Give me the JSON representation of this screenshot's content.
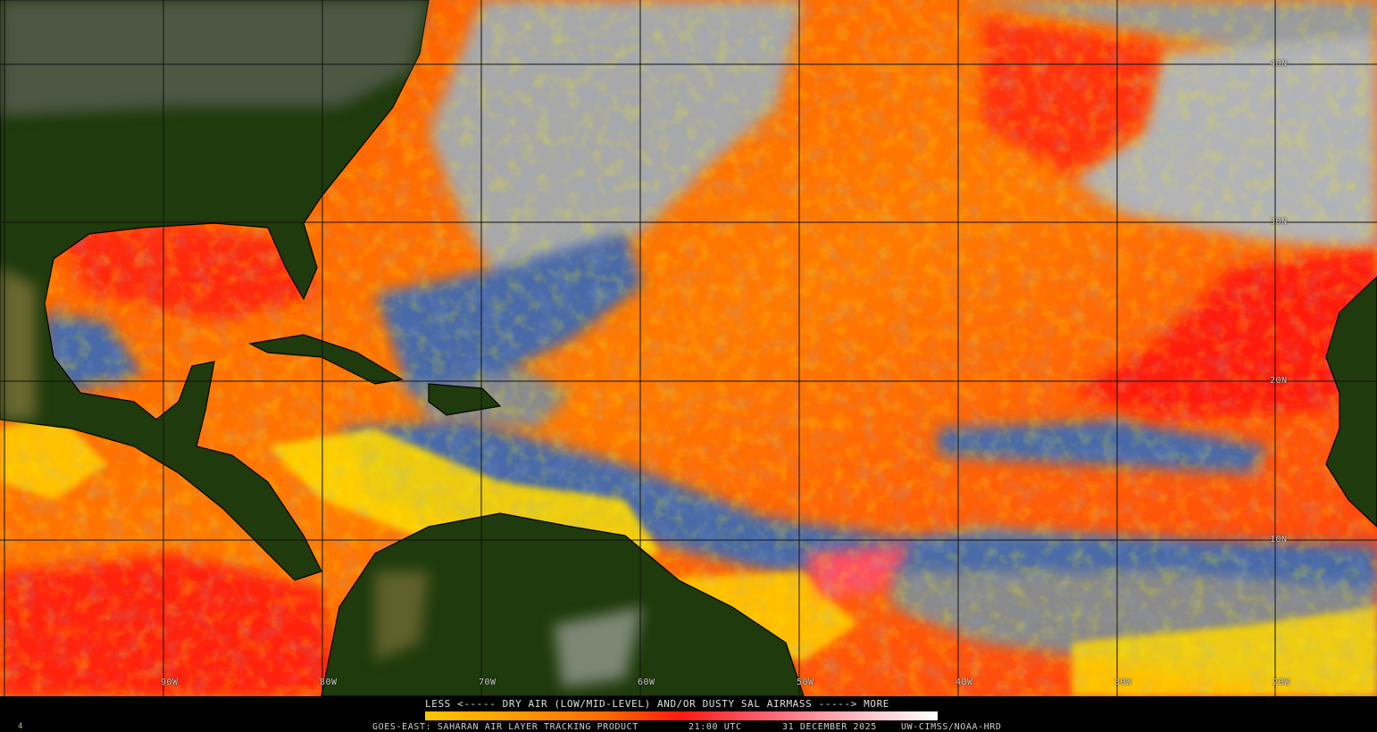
{
  "map": {
    "lat_labels": [
      "40N",
      "30N",
      "20N",
      "10N"
    ],
    "lon_labels": [
      "90W",
      "80W",
      "70W",
      "60W",
      "50W",
      "40W",
      "30W",
      "20W"
    ],
    "colors": {
      "land": "#1f3a0c",
      "ocean_dry": "#ff6a00",
      "ocean_moist": "#4a6aa8",
      "cloud": "#a8a8a8",
      "very_dry": "#ff1a10",
      "low": "#ffe600"
    }
  },
  "legend": {
    "title": "LESS <----- DRY AIR (LOW/MID-LEVEL) AND/OR DUSTY SAL AIRMASS -----> MORE",
    "scale_colors": [
      "#ffc400",
      "#ff6a00",
      "#ff1a10",
      "#ffb0b8",
      "#ffffff"
    ]
  },
  "footer": {
    "product": "GOES-EAST: SAHARAN AIR LAYER TRACKING PRODUCT",
    "time": "21:00 UTC",
    "date": "31 DECEMBER 2025",
    "credit": "UW-CIMSS/NOAA-HRD",
    "frame": "4"
  }
}
